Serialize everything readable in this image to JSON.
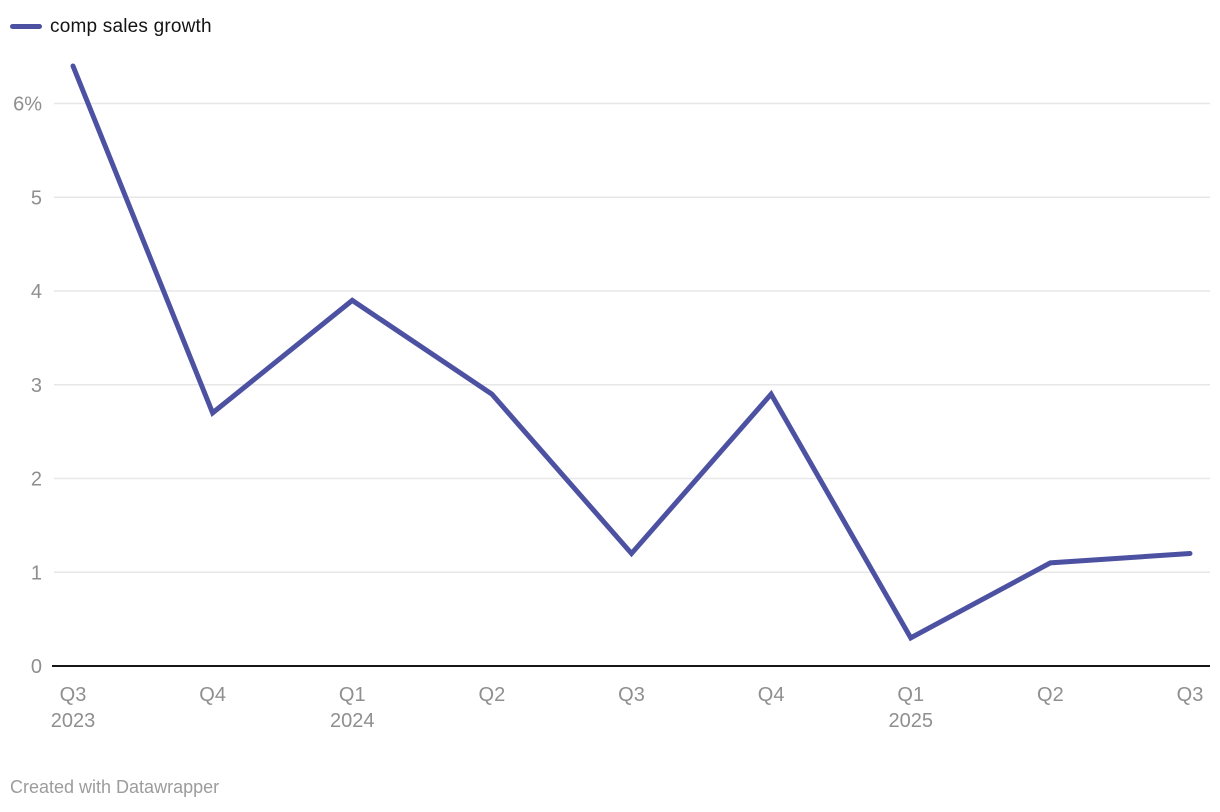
{
  "legend": {
    "label": "comp sales growth"
  },
  "footer": {
    "credit": "Created with Datawrapper"
  },
  "colors": {
    "line": "#4d51a2",
    "grid": "#e7e7e7",
    "axis": "#161616",
    "tick_text": "#8f8f8f",
    "legend_text": "#141414",
    "footer_text": "#9c9c9c"
  },
  "chart_data": {
    "type": "line",
    "title": "",
    "xlabel": "",
    "ylabel": "",
    "grid": "horizontal",
    "legend_position": "top-left",
    "categories": [
      "Q3 2023",
      "Q4 2023",
      "Q1 2024",
      "Q2 2024",
      "Q3 2024",
      "Q4 2024",
      "Q1 2025",
      "Q2 2025",
      "Q3 2025"
    ],
    "x_tick_labels": [
      "Q3",
      "Q4",
      "Q1",
      "Q2",
      "Q3",
      "Q4",
      "Q1",
      "Q2",
      "Q3"
    ],
    "x_year_labels": [
      "2023",
      "",
      "2024",
      "",
      "",
      "",
      "2025",
      "",
      ""
    ],
    "y_ticks": [
      0,
      1,
      2,
      3,
      4,
      5,
      6
    ],
    "y_tick_labels": [
      "0",
      "1",
      "2",
      "3",
      "4",
      "5",
      "6%"
    ],
    "ylim": [
      0,
      6.8
    ],
    "series": [
      {
        "name": "comp sales growth",
        "color": "#4d51a2",
        "values": [
          6.4,
          2.7,
          3.9,
          2.9,
          1.2,
          2.9,
          0.3,
          1.1,
          1.2
        ]
      }
    ]
  }
}
